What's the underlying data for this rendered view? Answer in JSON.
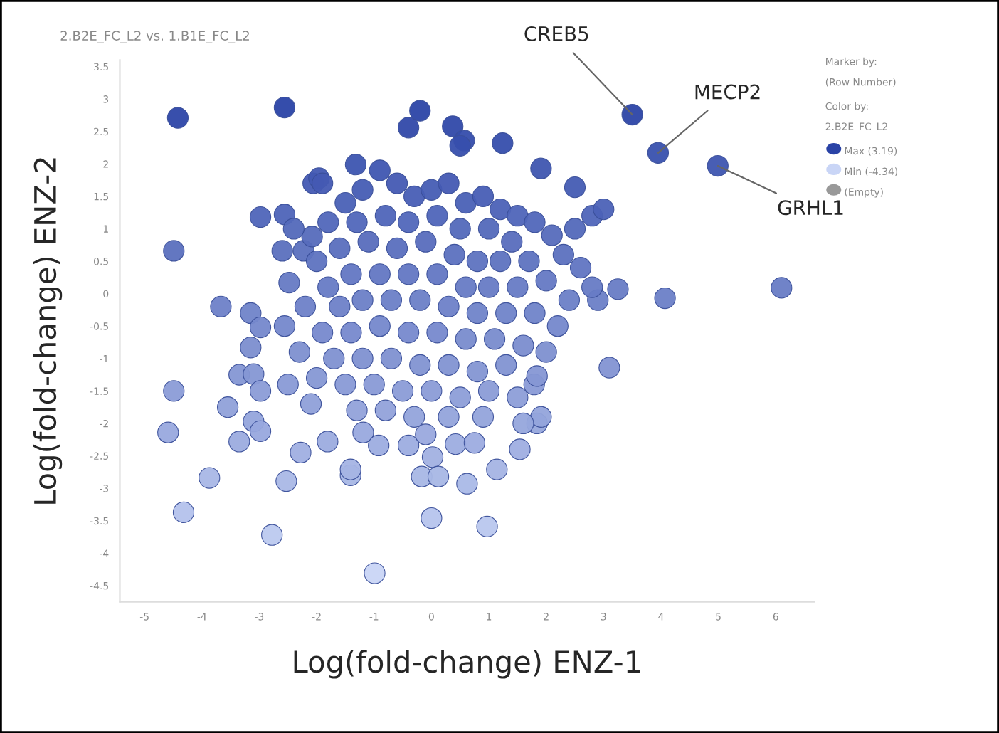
{
  "chart_data": {
    "type": "scatter",
    "title": "2.B2E_FC_L2 vs. 1.B1E_FC_L2",
    "xlabel": "Log(fold-change) ENZ-1",
    "ylabel": "Log(fold-change) ENZ-2",
    "xlim": [
      -5.43,
      6.67
    ],
    "ylim": [
      -4.75,
      3.6
    ],
    "xticks": [
      -5,
      -4,
      -3,
      -2,
      -1,
      0,
      1,
      2,
      3,
      4,
      5,
      6
    ],
    "yticks": [
      -4.5,
      -4,
      -3.5,
      -3,
      -2.5,
      -2,
      -1.5,
      -1,
      -0.5,
      0,
      0.5,
      1,
      1.5,
      2,
      2.5,
      3,
      3.5
    ],
    "grid": false,
    "legend": false,
    "series": [
      {
        "x": [
          -4.42,
          -2.56,
          -0.2,
          -0.4,
          0.37,
          0.57,
          0.5,
          1.24,
          -4.49,
          -1.32,
          -2.06,
          -1.96,
          -2.98,
          -2.56,
          -2.6,
          -2.23,
          -2.08,
          -2.48,
          -3.67,
          -3.15,
          -2.98,
          -2.56,
          -3.15,
          -3.35,
          -3.1,
          -4.49,
          -2.98,
          -3.55,
          -4.59,
          -3.35,
          -3.1,
          -2.98,
          -3.87,
          -4.32,
          -2.78,
          -2.53,
          -2.28,
          -0.99,
          -1.41,
          -1.41,
          -1.81,
          -1.19,
          -0.92,
          -0.4,
          -0.1,
          0.02,
          -0.17,
          0.12,
          0,
          0.97,
          0.62,
          0.42,
          0.75,
          1.14,
          1.54,
          1.84,
          1.91,
          1.6,
          1.79,
          1.84,
          3.1,
          4.07,
          6.1,
          3.25,
          2.9,
          2.5,
          1.91,
          3.5,
          3.95,
          4.99,
          -1.5,
          -1.2,
          -0.9,
          -0.6,
          -0.3,
          0,
          0.3,
          0.6,
          0.9,
          1.2,
          1.5,
          1.8,
          2.1,
          -1.8,
          -1.3,
          -0.8,
          -0.4,
          0.1,
          0.5,
          1.0,
          1.4,
          2.3,
          2.6,
          -2.0,
          -1.6,
          -1.1,
          -0.6,
          -0.1,
          0.4,
          0.8,
          1.2,
          1.7,
          2.0,
          -1.8,
          -1.4,
          -0.9,
          -0.4,
          0.1,
          0.6,
          1.0,
          1.5,
          2.4,
          -2.2,
          -1.6,
          -1.2,
          -0.7,
          -0.2,
          0.3,
          0.8,
          1.3,
          1.8,
          2.2,
          -1.9,
          -1.4,
          -0.9,
          -0.4,
          0.1,
          0.6,
          1.1,
          1.6,
          2.0,
          -1.7,
          -1.2,
          -0.7,
          -0.2,
          0.3,
          0.8,
          1.3,
          -1.5,
          -1.0,
          -0.5,
          0.0,
          0.5,
          1.0,
          1.5,
          -1.3,
          -0.8,
          -0.3,
          0.3,
          0.9,
          -2.0,
          -2.3,
          2.8,
          3.0,
          2.5,
          2.8,
          -2.4,
          -1.9,
          -2.5,
          -2.1
        ],
        "values": [
          2.71,
          2.87,
          2.82,
          2.56,
          2.58,
          2.36,
          2.28,
          2.32,
          0.66,
          1.99,
          1.7,
          1.78,
          1.18,
          1.22,
          0.66,
          0.66,
          0.88,
          0.17,
          -0.2,
          -0.3,
          -0.52,
          -0.5,
          -0.83,
          -1.25,
          -1.24,
          -1.5,
          -1.5,
          -1.75,
          -2.14,
          -2.28,
          -1.97,
          -2.12,
          -2.84,
          -3.37,
          -3.72,
          -2.89,
          -2.45,
          -4.31,
          -2.8,
          -2.71,
          -2.28,
          -2.14,
          -2.34,
          -2.34,
          -2.17,
          -2.52,
          -2.82,
          -2.82,
          -3.46,
          -3.59,
          -2.93,
          -2.32,
          -2.3,
          -2.71,
          -2.4,
          -2.0,
          -1.9,
          -2.0,
          -1.4,
          -1.27,
          -1.14,
          -0.07,
          0.09,
          0.07,
          -0.1,
          1.64,
          1.93,
          2.76,
          2.17,
          1.97,
          1.4,
          1.6,
          1.9,
          1.7,
          1.5,
          1.6,
          1.7,
          1.4,
          1.5,
          1.3,
          1.2,
          1.1,
          0.9,
          1.1,
          1.1,
          1.2,
          1.1,
          1.2,
          1.0,
          1.0,
          0.8,
          0.6,
          0.4,
          0.5,
          0.7,
          0.8,
          0.7,
          0.8,
          0.6,
          0.5,
          0.5,
          0.5,
          0.2,
          0.1,
          0.3,
          0.3,
          0.3,
          0.3,
          0.1,
          0.1,
          0.1,
          -0.1,
          -0.2,
          -0.2,
          -0.1,
          -0.1,
          -0.1,
          -0.2,
          -0.3,
          -0.3,
          -0.3,
          -0.5,
          -0.6,
          -0.6,
          -0.5,
          -0.6,
          -0.6,
          -0.7,
          -0.7,
          -0.8,
          -0.9,
          -1.0,
          -1.0,
          -1.0,
          -1.1,
          -1.1,
          -1.2,
          -1.1,
          -1.4,
          -1.4,
          -1.5,
          -1.5,
          -1.6,
          -1.5,
          -1.6,
          -1.8,
          -1.8,
          -1.9,
          -1.9,
          -1.9,
          -1.3,
          -0.9,
          1.2,
          1.3,
          1.0,
          0.1,
          1.0,
          1.7,
          -1.4,
          -1.7
        ]
      }
    ],
    "annotations": [
      {
        "text": "CREB5",
        "x": 3.5,
        "y": 2.76
      },
      {
        "text": "MECP2",
        "x": 3.95,
        "y": 2.17
      },
      {
        "text": "GRHL1",
        "x": 4.99,
        "y": 1.97
      },
      "Marker by:",
      "(Row Number)",
      "Color by:",
      "2.B2E_FC_L2",
      "Max (3.19)",
      "Min (-4.34)",
      "(Empty)"
    ]
  }
}
